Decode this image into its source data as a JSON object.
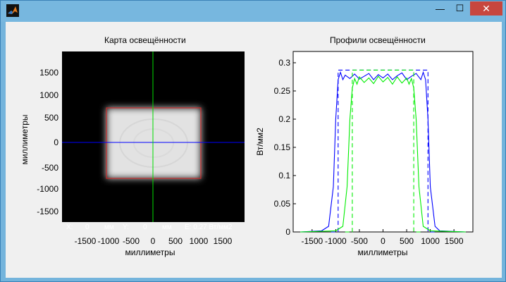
{
  "window": {
    "icon": "matlab-icon",
    "buttons": {
      "minimize": "—",
      "maximize": "☐",
      "close": "✕"
    }
  },
  "left_plot": {
    "title": "Карта освещённости",
    "xlabel": "миллиметры",
    "ylabel": "миллиметры",
    "xticks": [
      "-1500",
      "-1000",
      "-500",
      "0",
      "500",
      "1000",
      "1500"
    ],
    "yticks": [
      "1500",
      "1000",
      "500",
      "0",
      "-500",
      "-1000",
      "-1500"
    ],
    "status": {
      "x_label": "X:",
      "x_value": "0",
      "x_unit": "мм",
      "y_label": "Y:",
      "y_value": "0",
      "y_unit": "мм",
      "e_readout": "E: 0.27 Вт/мм2"
    }
  },
  "chart_data": {
    "type": "line",
    "title": "Профили освещённости",
    "xlabel": "миллиметры",
    "ylabel": "Вт/мм2",
    "xlim": [
      -1900,
      1900
    ],
    "ylim": [
      0,
      0.32
    ],
    "xticks": [
      -1500,
      -1000,
      -500,
      0,
      500,
      1000,
      1500
    ],
    "yticks": [
      0,
      0.05,
      0.1,
      0.15,
      0.2,
      0.25,
      0.3
    ],
    "ytick_labels": [
      "0",
      "0.05",
      "0.1",
      "0.15",
      "0.2",
      "0.25",
      "0.3"
    ],
    "series": [
      {
        "color": "#0000ff",
        "style": "solid",
        "x": [
          -1750,
          -1300,
          -1150,
          -1050,
          -1000,
          -950,
          -900,
          -850,
          -800,
          -700,
          -600,
          -500,
          -400,
          -300,
          -200,
          -100,
          0,
          100,
          200,
          300,
          400,
          500,
          600,
          700,
          800,
          850,
          900,
          950,
          1000,
          1100,
          1200,
          1750
        ],
        "y": [
          0,
          0.002,
          0.01,
          0.08,
          0.2,
          0.27,
          0.283,
          0.27,
          0.278,
          0.272,
          0.28,
          0.271,
          0.276,
          0.281,
          0.27,
          0.279,
          0.273,
          0.28,
          0.27,
          0.277,
          0.282,
          0.27,
          0.276,
          0.281,
          0.27,
          0.283,
          0.27,
          0.2,
          0.08,
          0.01,
          0.002,
          0
        ]
      },
      {
        "color": "#0000ff",
        "style": "dashed",
        "x": [
          -1100,
          -950,
          -950,
          950,
          950,
          1100
        ],
        "y": [
          0,
          0,
          0.287,
          0.287,
          0,
          0
        ]
      },
      {
        "color": "#00ee00",
        "style": "solid",
        "x": [
          -1750,
          -1000,
          -850,
          -760,
          -700,
          -650,
          -600,
          -550,
          -500,
          -400,
          -300,
          -200,
          -100,
          0,
          100,
          200,
          300,
          400,
          500,
          550,
          600,
          650,
          700,
          760,
          850,
          1000,
          1750
        ],
        "y": [
          0,
          0.002,
          0.01,
          0.08,
          0.2,
          0.255,
          0.272,
          0.262,
          0.275,
          0.265,
          0.273,
          0.263,
          0.276,
          0.266,
          0.274,
          0.262,
          0.275,
          0.264,
          0.273,
          0.262,
          0.272,
          0.255,
          0.2,
          0.08,
          0.01,
          0.002,
          0
        ]
      },
      {
        "color": "#00ee00",
        "style": "dashed",
        "x": [
          -800,
          -650,
          -650,
          650,
          650,
          800
        ],
        "y": [
          0,
          0,
          0.287,
          0.287,
          0,
          0
        ]
      }
    ]
  }
}
